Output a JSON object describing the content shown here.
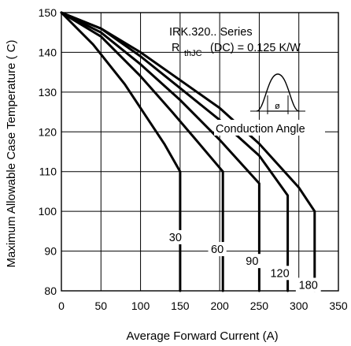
{
  "chart_data": {
    "type": "line",
    "xlabel": "Average Forward Current (A)",
    "ylabel": "Maximum Allowable Case Temperature ( C)",
    "xlim": [
      0,
      350
    ],
    "ylim": [
      80,
      150
    ],
    "x_ticks": [
      0,
      50,
      100,
      150,
      200,
      250,
      300,
      350
    ],
    "y_ticks": [
      80,
      90,
      100,
      110,
      120,
      130,
      140,
      150
    ],
    "grid": true,
    "annotations": {
      "series_title": "IRK.320.. Series",
      "resistance_main": "R",
      "resistance_sub": "thJC",
      "resistance_value": "(DC) = 0.125 K/W",
      "inset_symbol": "ø",
      "inset_label": "Conduction Angle"
    },
    "series": [
      {
        "label": "30",
        "x": [
          0,
          40,
          80,
          110,
          130,
          150,
          150
        ],
        "y": [
          150,
          142,
          132,
          123,
          117,
          110,
          80
        ]
      },
      {
        "label": "60",
        "x": [
          0,
          50,
          100,
          140,
          170,
          204,
          204
        ],
        "y": [
          150,
          144,
          134,
          125,
          118,
          110,
          80
        ]
      },
      {
        "label": "90",
        "x": [
          0,
          50,
          100,
          150,
          200,
          250,
          250
        ],
        "y": [
          150,
          145,
          137,
          128,
          118,
          107,
          80
        ]
      },
      {
        "label": "120",
        "x": [
          0,
          50,
          100,
          150,
          200,
          250,
          286,
          286
        ],
        "y": [
          150,
          146,
          139,
          131,
          123,
          114,
          104,
          80
        ]
      },
      {
        "label": "180",
        "x": [
          0,
          50,
          100,
          150,
          200,
          250,
          300,
          320,
          320
        ],
        "y": [
          150,
          146,
          140,
          133,
          126,
          117,
          106,
          100,
          80
        ]
      }
    ]
  }
}
